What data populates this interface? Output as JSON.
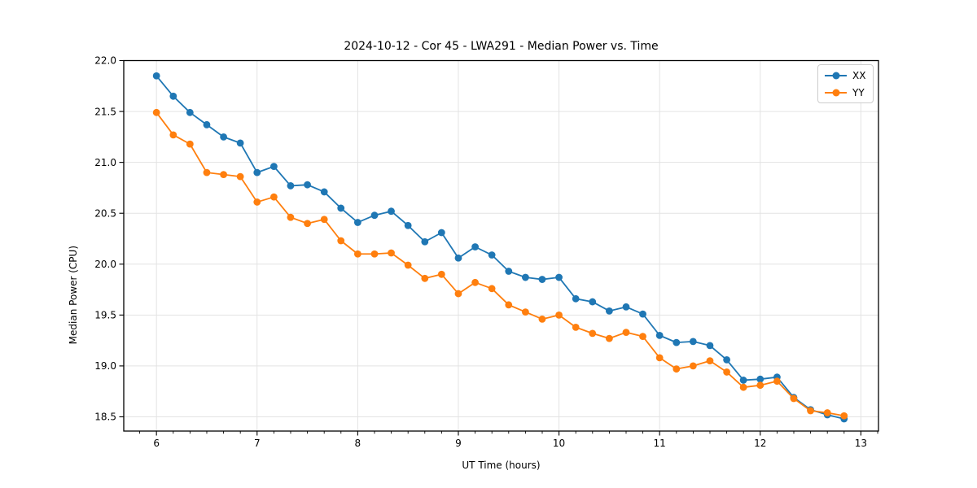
{
  "chart_data": {
    "type": "line",
    "title": "2024-10-12 - Cor 45 - LWA291 - Median Power vs. Time",
    "xlabel": "UT Time (hours)",
    "ylabel": "Median Power (CPU)",
    "xlim": [
      5.675,
      13.175
    ],
    "ylim": [
      18.36,
      22.0
    ],
    "x_ticks": [
      "6",
      "7",
      "8",
      "9",
      "10",
      "11",
      "12",
      "13"
    ],
    "y_ticks": [
      "18.5",
      "19.0",
      "19.5",
      "20.0",
      "20.5",
      "21.0",
      "21.5",
      "22.0"
    ],
    "minor_tick_step_x": 0.16667,
    "grid": "major",
    "legend_position": "upper right",
    "x": [
      6.0,
      6.167,
      6.333,
      6.5,
      6.667,
      6.833,
      7.0,
      7.167,
      7.333,
      7.5,
      7.667,
      7.833,
      8.0,
      8.167,
      8.333,
      8.5,
      8.667,
      8.833,
      9.0,
      9.167,
      9.333,
      9.5,
      9.667,
      9.833,
      10.0,
      10.167,
      10.333,
      10.5,
      10.667,
      10.833,
      11.0,
      11.167,
      11.333,
      11.5,
      11.667,
      11.833,
      12.0,
      12.167,
      12.333,
      12.5,
      12.667,
      12.833
    ],
    "series": [
      {
        "name": "XX",
        "color": "#1f77b4",
        "values": [
          21.85,
          21.65,
          21.49,
          21.37,
          21.25,
          21.19,
          20.9,
          20.96,
          20.77,
          20.78,
          20.71,
          20.55,
          20.41,
          20.48,
          20.52,
          20.38,
          20.22,
          20.31,
          20.06,
          20.17,
          20.09,
          19.93,
          19.87,
          19.85,
          19.87,
          19.66,
          19.63,
          19.54,
          19.58,
          19.51,
          19.3,
          19.23,
          19.24,
          19.2,
          19.06,
          18.86,
          18.87,
          18.89,
          18.69,
          18.57,
          18.52,
          18.48
        ]
      },
      {
        "name": "YY",
        "color": "#ff7f0e",
        "values": [
          21.49,
          21.27,
          21.18,
          20.9,
          20.88,
          20.86,
          20.61,
          20.66,
          20.46,
          20.4,
          20.44,
          20.23,
          20.1,
          20.1,
          20.11,
          19.99,
          19.86,
          19.9,
          19.71,
          19.82,
          19.76,
          19.6,
          19.53,
          19.46,
          19.5,
          19.38,
          19.32,
          19.27,
          19.33,
          19.29,
          19.08,
          18.97,
          19.0,
          19.05,
          18.94,
          18.79,
          18.81,
          18.85,
          18.68,
          18.56,
          18.54,
          18.51
        ]
      }
    ]
  }
}
